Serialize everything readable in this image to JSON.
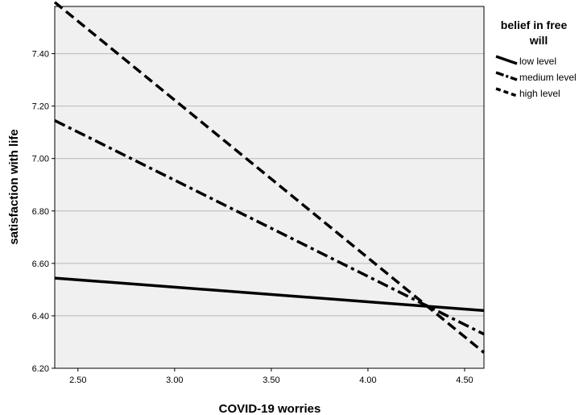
{
  "chart_data": {
    "type": "line",
    "xlabel": "COVID-19 worries",
    "ylabel": "satisfaction with life",
    "xlim": [
      2.38,
      4.6
    ],
    "ylim": [
      6.2,
      7.58
    ],
    "x_ticks": [
      "2.50",
      "3.00",
      "3.50",
      "4.00",
      "4.50"
    ],
    "y_ticks": [
      "6.20",
      "6.40",
      "6.60",
      "6.80",
      "7.00",
      "7.20",
      "7.40"
    ],
    "grid": "horizontal",
    "background": "#f0f0f0",
    "legend": {
      "title_lines": [
        "belief in free",
        "will"
      ],
      "placement": "right"
    },
    "series": [
      {
        "name": "low level",
        "style": "solid",
        "x": [
          2.38,
          4.6
        ],
        "y": [
          6.544,
          6.42
        ]
      },
      {
        "name": "medium level",
        "style": "dashdot",
        "x": [
          2.38,
          4.6
        ],
        "y": [
          7.145,
          6.33
        ]
      },
      {
        "name": "high level",
        "style": "dashed",
        "x": [
          2.38,
          4.6
        ],
        "y": [
          7.596,
          6.26
        ]
      }
    ]
  }
}
